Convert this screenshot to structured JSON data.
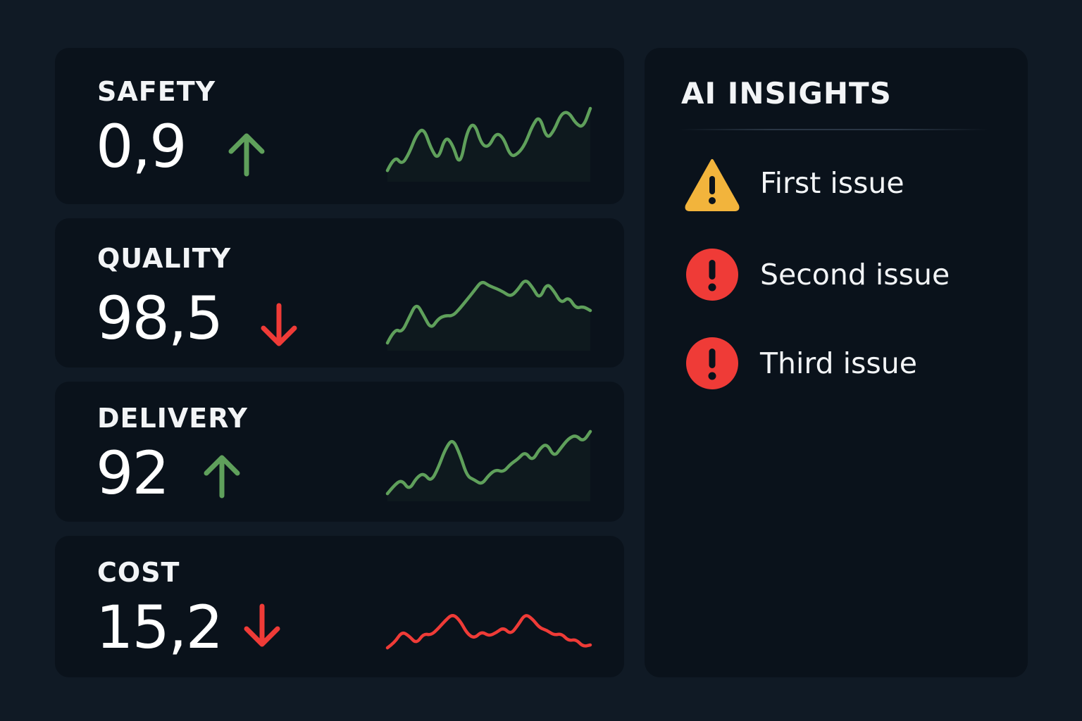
{
  "colors": {
    "background": "#101a25",
    "card": "#0a121b",
    "up": "#5fa05b",
    "down": "#ef3b37",
    "warning": "#f2b43c",
    "error": "#ef3b37"
  },
  "kpis": [
    {
      "label": "SAFETY",
      "value": "0,9",
      "trend": "up",
      "trend_icon": "arrow-up-icon",
      "spark": [
        0.1,
        0.32,
        0.18,
        0.35,
        0.62,
        0.72,
        0.42,
        0.25,
        0.6,
        0.48,
        0.15,
        0.68,
        0.8,
        0.47,
        0.44,
        0.65,
        0.58,
        0.3,
        0.34,
        0.48,
        0.75,
        0.9,
        0.55,
        0.68,
        0.93,
        0.95,
        0.78,
        0.72,
        1.0
      ]
    },
    {
      "label": "QUALITY",
      "value": "98,5",
      "trend": "down",
      "trend_icon": "arrow-down-icon",
      "spark": [
        0.05,
        0.26,
        0.2,
        0.42,
        0.63,
        0.45,
        0.25,
        0.4,
        0.45,
        0.44,
        0.55,
        0.68,
        0.81,
        0.95,
        0.88,
        0.84,
        0.79,
        0.72,
        0.82,
        0.98,
        0.86,
        0.68,
        0.92,
        0.8,
        0.62,
        0.72,
        0.55,
        0.58,
        0.52
      ]
    },
    {
      "label": "DELIVERY",
      "value": "92",
      "trend": "up",
      "trend_icon": "arrow-up-icon",
      "spark": [
        0.05,
        0.18,
        0.25,
        0.1,
        0.28,
        0.35,
        0.22,
        0.42,
        0.7,
        0.85,
        0.62,
        0.3,
        0.25,
        0.18,
        0.32,
        0.4,
        0.36,
        0.48,
        0.55,
        0.66,
        0.52,
        0.7,
        0.78,
        0.58,
        0.72,
        0.85,
        0.9,
        0.8,
        0.95
      ]
    },
    {
      "label": "COST",
      "value": "15,2",
      "trend": "down",
      "trend_icon": "arrow-down-icon",
      "spark": [
        0.05,
        0.18,
        0.45,
        0.34,
        0.15,
        0.4,
        0.36,
        0.52,
        0.72,
        0.88,
        0.72,
        0.4,
        0.28,
        0.45,
        0.34,
        0.42,
        0.55,
        0.38,
        0.6,
        0.88,
        0.76,
        0.54,
        0.48,
        0.36,
        0.4,
        0.22,
        0.26,
        0.08,
        0.12
      ]
    }
  ],
  "insights": {
    "title": "AI INSIGHTS",
    "items": [
      {
        "text": "First issue",
        "severity": "warning",
        "icon": "warning-triangle-icon"
      },
      {
        "text": "Second issue",
        "severity": "error",
        "icon": "error-circle-icon"
      },
      {
        "text": "Third issue",
        "severity": "error",
        "icon": "error-circle-icon"
      }
    ]
  }
}
